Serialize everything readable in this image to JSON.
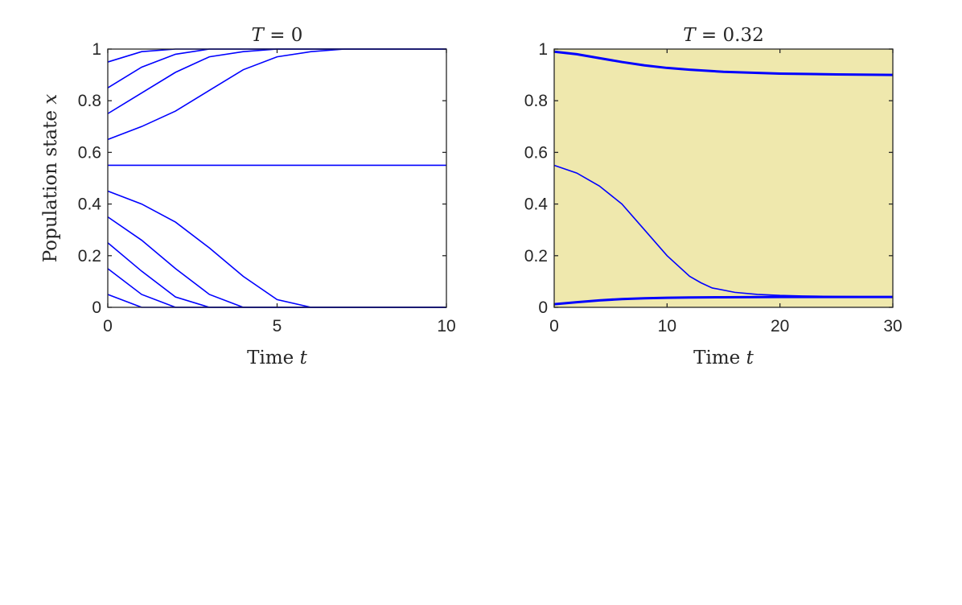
{
  "chart_data": [
    {
      "type": "line",
      "title_plain": "T = 0",
      "title_var": "T",
      "title_value": "0",
      "xlabel_plain": "Time t",
      "xlabel_word": "Time",
      "xlabel_var": "t",
      "ylabel_plain": "Population state x",
      "ylabel_word": "Population state",
      "ylabel_var": "x",
      "xlim": [
        0,
        10
      ],
      "ylim": [
        0,
        1
      ],
      "xticks": [
        0,
        5,
        10
      ],
      "xtick_labels": [
        "0",
        "5",
        "10"
      ],
      "yticks": [
        0,
        0.2,
        0.4,
        0.6,
        0.8,
        1
      ],
      "ytick_labels": [
        "0",
        "0.2",
        "0.4",
        "0.6",
        "0.8",
        "1"
      ],
      "background": "#ffffff",
      "line_color": "#0000ff",
      "grid": false,
      "series": [
        {
          "x": [
            0,
            1,
            2,
            3,
            4,
            5,
            6,
            7,
            8,
            9,
            10
          ],
          "y": [
            0.95,
            0.99,
            1.0,
            1.0,
            1.0,
            1.0,
            1.0,
            1.0,
            1.0,
            1.0,
            1.0
          ]
        },
        {
          "x": [
            0,
            1,
            2,
            3,
            4,
            5,
            6,
            7,
            8,
            9,
            10
          ],
          "y": [
            0.85,
            0.93,
            0.98,
            1.0,
            1.0,
            1.0,
            1.0,
            1.0,
            1.0,
            1.0,
            1.0
          ]
        },
        {
          "x": [
            0,
            1,
            2,
            3,
            4,
            5,
            6,
            7,
            8,
            9,
            10
          ],
          "y": [
            0.75,
            0.83,
            0.91,
            0.97,
            0.99,
            1.0,
            1.0,
            1.0,
            1.0,
            1.0,
            1.0
          ]
        },
        {
          "x": [
            0,
            1,
            2,
            3,
            4,
            5,
            6,
            7,
            8,
            9,
            10
          ],
          "y": [
            0.65,
            0.7,
            0.76,
            0.84,
            0.92,
            0.97,
            0.99,
            1.0,
            1.0,
            1.0,
            1.0
          ]
        },
        {
          "x": [
            0,
            10
          ],
          "y": [
            0.55,
            0.55
          ]
        },
        {
          "x": [
            0,
            1,
            2,
            3,
            4,
            5,
            6,
            7,
            8,
            9,
            10
          ],
          "y": [
            0.45,
            0.4,
            0.33,
            0.23,
            0.12,
            0.03,
            0.0,
            0.0,
            0.0,
            0.0,
            0.0
          ]
        },
        {
          "x": [
            0,
            1,
            2,
            3,
            4,
            5,
            6,
            7,
            8,
            9,
            10
          ],
          "y": [
            0.35,
            0.26,
            0.15,
            0.05,
            0.0,
            0.0,
            0.0,
            0.0,
            0.0,
            0.0,
            0.0
          ]
        },
        {
          "x": [
            0,
            1,
            2,
            3,
            4,
            5,
            6,
            7,
            8,
            9,
            10
          ],
          "y": [
            0.25,
            0.14,
            0.04,
            0.0,
            0.0,
            0.0,
            0.0,
            0.0,
            0.0,
            0.0,
            0.0
          ]
        },
        {
          "x": [
            0,
            1,
            2,
            3,
            4,
            5,
            6,
            7,
            8,
            9,
            10
          ],
          "y": [
            0.15,
            0.05,
            0.0,
            0.0,
            0.0,
            0.0,
            0.0,
            0.0,
            0.0,
            0.0,
            0.0
          ]
        },
        {
          "x": [
            0,
            1,
            2,
            3,
            4,
            5,
            6,
            7,
            8,
            9,
            10
          ],
          "y": [
            0.05,
            0.0,
            0.0,
            0.0,
            0.0,
            0.0,
            0.0,
            0.0,
            0.0,
            0.0,
            0.0
          ]
        }
      ]
    },
    {
      "type": "line",
      "title_plain": "T = 0.32",
      "title_var": "T",
      "title_value": "0.32",
      "xlabel_plain": "Time t",
      "xlabel_word": "Time",
      "xlabel_var": "t",
      "xlim": [
        0,
        30
      ],
      "ylim": [
        0,
        1
      ],
      "xticks": [
        0,
        10,
        20,
        30
      ],
      "xtick_labels": [
        "0",
        "10",
        "20",
        "30"
      ],
      "yticks": [
        0,
        0.2,
        0.4,
        0.6,
        0.8,
        1
      ],
      "ytick_labels": [
        "0",
        "0.2",
        "0.4",
        "0.6",
        "0.8",
        "1"
      ],
      "background": "#efe8ad",
      "line_color": "#0000ff",
      "grid": false,
      "series": [
        {
          "thick": true,
          "x": [
            0,
            2,
            4,
            6,
            8,
            10,
            12,
            15,
            20,
            25,
            30
          ],
          "y": [
            0.99,
            0.98,
            0.965,
            0.95,
            0.937,
            0.927,
            0.92,
            0.912,
            0.905,
            0.902,
            0.9
          ]
        },
        {
          "x": [
            0,
            2,
            4,
            6,
            8,
            10,
            12,
            13,
            14,
            16,
            18,
            20,
            22,
            25,
            30
          ],
          "y": [
            0.55,
            0.52,
            0.47,
            0.4,
            0.3,
            0.2,
            0.12,
            0.095,
            0.075,
            0.058,
            0.05,
            0.046,
            0.044,
            0.042,
            0.04
          ]
        },
        {
          "thick": true,
          "x": [
            0,
            2,
            4,
            6,
            8,
            10,
            12,
            15,
            20,
            25,
            30
          ],
          "y": [
            0.012,
            0.02,
            0.027,
            0.032,
            0.035,
            0.037,
            0.038,
            0.039,
            0.04,
            0.04,
            0.04
          ]
        }
      ]
    }
  ]
}
